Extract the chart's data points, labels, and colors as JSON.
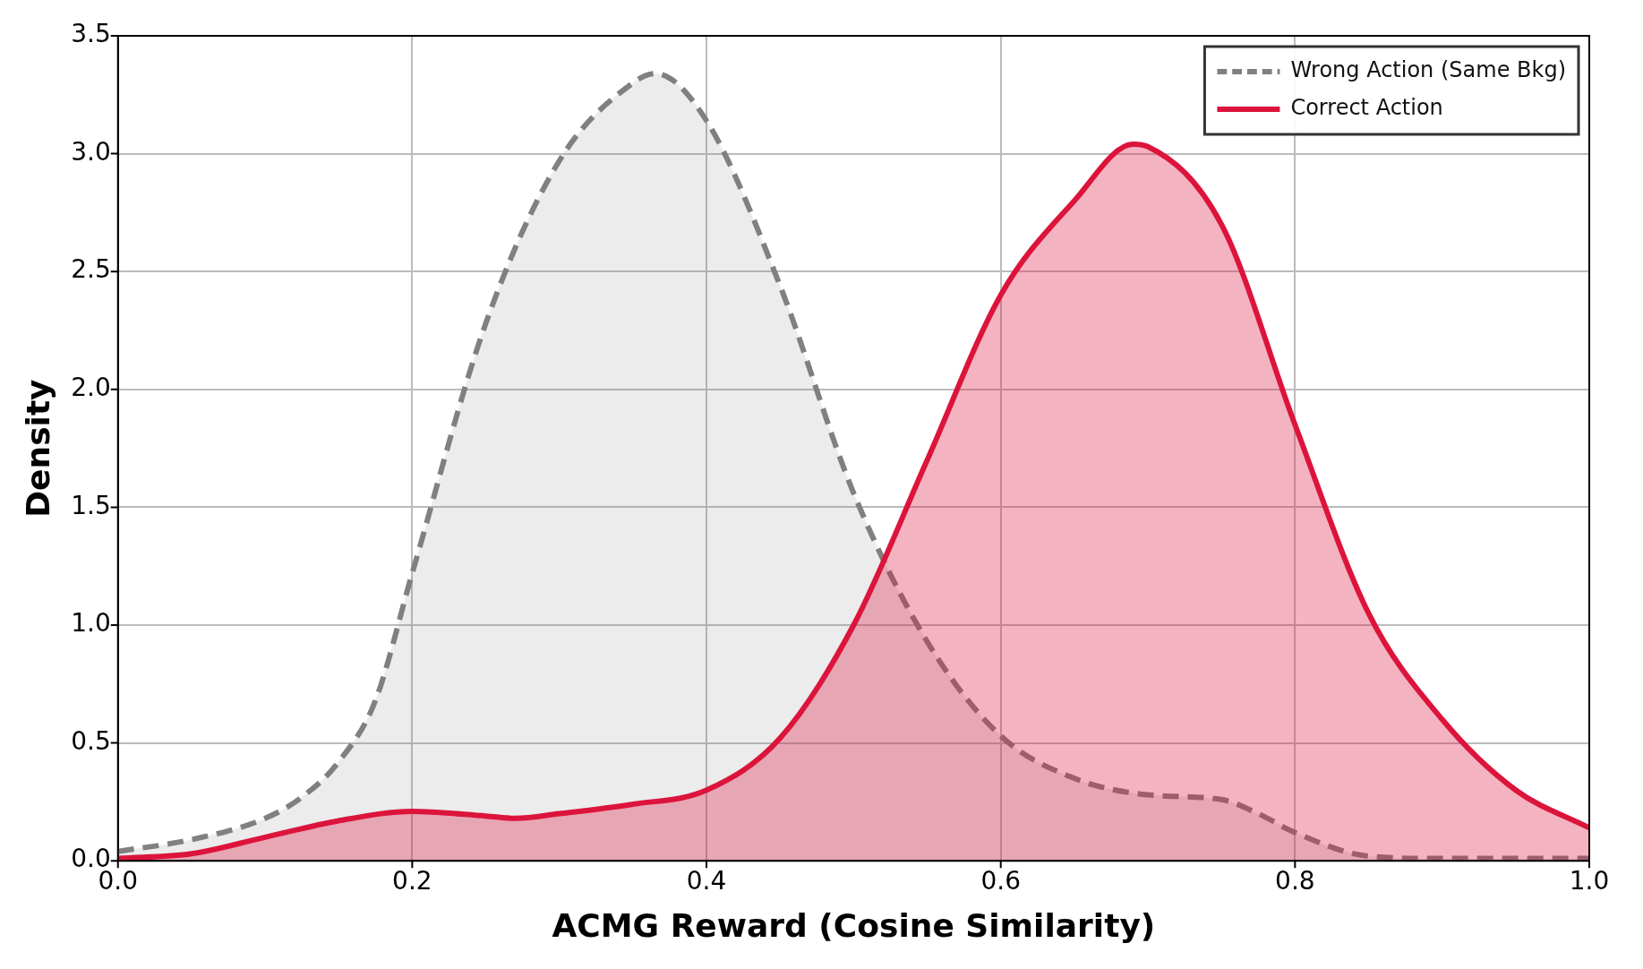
{
  "chart_data": {
    "type": "area",
    "xlabel": "ACMG Reward (Cosine Similarity)",
    "ylabel": "Density",
    "series": [
      {
        "name": "Wrong Action (Same Bkg)",
        "color": "#808080",
        "line_style": "dashed",
        "x": [
          0,
          0.05,
          0.1,
          0.125,
          0.15,
          0.175,
          0.2,
          0.25,
          0.3,
          0.35,
          0.365,
          0.4,
          0.45,
          0.5,
          0.55,
          0.6,
          0.65,
          0.7,
          0.75,
          0.775,
          0.8,
          0.85,
          0.9,
          1.0
        ],
        "values": [
          0.04,
          0.09,
          0.18,
          0.27,
          0.42,
          0.68,
          1.22,
          2.28,
          2.97,
          3.3,
          3.34,
          3.14,
          2.44,
          1.56,
          0.93,
          0.53,
          0.35,
          0.28,
          0.26,
          0.2,
          0.12,
          0.02,
          0.01,
          0.01
        ]
      },
      {
        "name": "Correct Action",
        "color": "#dc143c",
        "line_style": "solid",
        "x": [
          0,
          0.05,
          0.1,
          0.15,
          0.2,
          0.25,
          0.27,
          0.3,
          0.35,
          0.4,
          0.45,
          0.5,
          0.55,
          0.6,
          0.65,
          0.69,
          0.7,
          0.75,
          0.8,
          0.85,
          0.9,
          0.95,
          1.0
        ],
        "values": [
          0.01,
          0.03,
          0.1,
          0.17,
          0.21,
          0.19,
          0.18,
          0.2,
          0.24,
          0.3,
          0.52,
          1.0,
          1.7,
          2.4,
          2.8,
          3.04,
          3.03,
          2.7,
          1.85,
          1.05,
          0.6,
          0.3,
          0.14
        ]
      }
    ],
    "xlim": [
      0,
      1
    ],
    "ylim": [
      0,
      3.5
    ],
    "xticks": [
      {
        "value": 0,
        "label": "0.0"
      },
      0.2,
      0.4,
      0.6,
      0.8,
      {
        "value": 1,
        "label": "1.0"
      }
    ],
    "yticks": [
      {
        "value": 0,
        "label": "0.0"
      },
      0.5,
      {
        "value": 1,
        "label": "1.0"
      },
      1.5,
      {
        "value": 2,
        "label": "2.0"
      },
      2.5,
      {
        "value": 3,
        "label": "3.0"
      },
      3.5
    ],
    "grid": true,
    "legend": "top right",
    "marker": "none"
  }
}
